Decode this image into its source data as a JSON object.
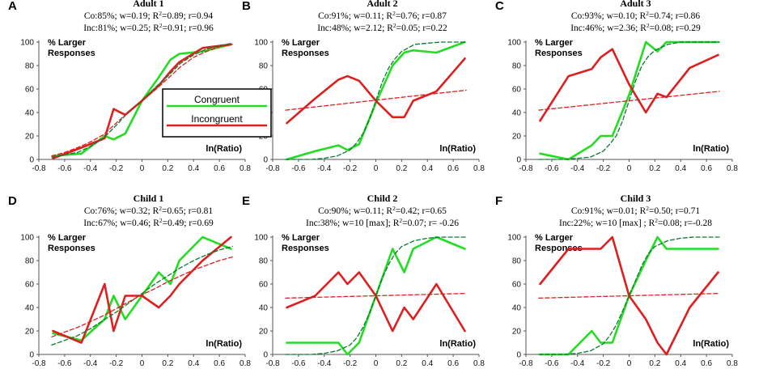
{
  "colors": {
    "congruent": "#22dd22",
    "congruent_fit": "#0a7a2e",
    "incongruent": "#dd1f1f",
    "incongruent_fit": "#dd1f1f",
    "axis": "#555555",
    "legend_border": "#000000"
  },
  "legend": {
    "congruent": "Congruent",
    "incongruent": "Incongruent"
  },
  "chart_data": [
    {
      "type": "line",
      "letter": "A",
      "title": "Adult 1",
      "stats_co": {
        "pre": "Co:85%; w=0.19; R",
        "sup": "2",
        "post": "=0.89; r=0.94"
      },
      "stats_inc": {
        "pre": "Inc:81%; w=0.25; R",
        "sup": "2",
        "post": "=0.91; r=0.96"
      },
      "ylabel": [
        "% Larger",
        "Responses"
      ],
      "xlabel": "ln(Ratio)",
      "xlim": [
        -0.8,
        0.8
      ],
      "ylim": [
        0,
        100
      ],
      "xticks": [
        "-0.8",
        "-0.6",
        "-0.4",
        "-0.2",
        "0",
        "0.2",
        "0.4",
        "0.6",
        "0.8"
      ],
      "yticks": [
        "0",
        "20",
        "40",
        "60",
        "80",
        "100"
      ],
      "show_legend": true,
      "series": [
        {
          "name": "Congruent",
          "style": "solid",
          "color_key": "congruent",
          "x": [
            -0.69,
            -0.47,
            -0.29,
            -0.22,
            -0.13,
            0,
            0.13,
            0.22,
            0.29,
            0.47,
            0.69
          ],
          "y": [
            3,
            5,
            20,
            17,
            22,
            50,
            70,
            85,
            90,
            92,
            98
          ]
        },
        {
          "name": "Incongruent",
          "style": "solid",
          "color_key": "incongruent",
          "x": [
            -0.69,
            -0.47,
            -0.29,
            -0.22,
            -0.13,
            0,
            0.13,
            0.22,
            0.29,
            0.47,
            0.69
          ],
          "y": [
            1,
            10,
            18,
            43,
            38,
            50,
            63,
            75,
            83,
            95,
            98
          ]
        },
        {
          "name": "Congruent fit",
          "style": "dashed",
          "color_key": "congruent_fit",
          "x": [
            -0.7,
            -0.6,
            -0.5,
            -0.4,
            -0.3,
            -0.2,
            -0.1,
            0,
            0.1,
            0.2,
            0.3,
            0.4,
            0.5,
            0.6,
            0.7
          ],
          "y": [
            2,
            4,
            6,
            11,
            18,
            29,
            41,
            50,
            61,
            71,
            82,
            89,
            94,
            97,
            99
          ]
        },
        {
          "name": "Incongruent fit",
          "style": "dashed",
          "color_key": "incongruent_fit",
          "x": [
            -0.7,
            -0.6,
            -0.5,
            -0.4,
            -0.3,
            -0.2,
            -0.1,
            0,
            0.1,
            0.2,
            0.3,
            0.4,
            0.5,
            0.6,
            0.7
          ],
          "y": [
            3,
            6,
            10,
            15,
            21,
            31,
            41,
            50,
            59,
            69,
            79,
            87,
            92,
            96,
            98
          ]
        }
      ]
    },
    {
      "type": "line",
      "letter": "B",
      "title": "Adult 2",
      "stats_co": {
        "pre": "Co:91%; w=0.11; R",
        "sup": "2",
        "post": "=0.76; r=0.87"
      },
      "stats_inc": {
        "pre": "Inc:48%; w=2.12; R",
        "sup": "2",
        "post": "=0.05; r=0.22"
      },
      "ylabel": [
        "% Larger",
        "Responses"
      ],
      "xlabel": "ln(Ratio)",
      "xlim": [
        -0.8,
        0.8
      ],
      "ylim": [
        0,
        100
      ],
      "xticks": [
        "-0.8",
        "-0.6",
        "-0.4",
        "-0.2",
        "0",
        "0.2",
        "0.4",
        "0.6",
        "0.8"
      ],
      "yticks": [
        "0",
        "20",
        "40",
        "60",
        "80",
        "100"
      ],
      "show_legend": false,
      "series": [
        {
          "name": "Congruent",
          "style": "solid",
          "color_key": "congruent",
          "x": [
            -0.69,
            -0.47,
            -0.29,
            -0.22,
            -0.13,
            0,
            0.13,
            0.22,
            0.29,
            0.47,
            0.69
          ],
          "y": [
            0,
            7,
            12,
            8,
            13,
            48,
            80,
            91,
            93,
            91,
            100
          ]
        },
        {
          "name": "Incongruent",
          "style": "solid",
          "color_key": "incongruent",
          "x": [
            -0.69,
            -0.47,
            -0.29,
            -0.22,
            -0.13,
            0,
            0.13,
            0.22,
            0.29,
            0.47,
            0.69
          ],
          "y": [
            31,
            52,
            68,
            71,
            67,
            50,
            36,
            36,
            50,
            58,
            86
          ]
        },
        {
          "name": "Congruent fit",
          "style": "dashed",
          "color_key": "congruent_fit",
          "x": [
            -0.7,
            -0.6,
            -0.5,
            -0.4,
            -0.3,
            -0.2,
            -0.15,
            -0.1,
            -0.05,
            0,
            0.05,
            0.1,
            0.15,
            0.2,
            0.3,
            0.4,
            0.5,
            0.6,
            0.7
          ],
          "y": [
            0,
            0,
            0,
            1,
            3,
            8,
            14,
            22,
            34,
            50,
            66,
            78,
            86,
            92,
            98,
            99,
            100,
            100,
            100
          ]
        },
        {
          "name": "Incongruent fit",
          "style": "dashed",
          "color_key": "incongruent_fit",
          "x": [
            -0.7,
            0.7
          ],
          "y": [
            42,
            59
          ]
        }
      ]
    },
    {
      "type": "line",
      "letter": "C",
      "title": "Adult 3",
      "stats_co": {
        "pre": "Co:93%; w=0.10; R",
        "sup": "2",
        "post": "=0.74; r=0.86"
      },
      "stats_inc": {
        "pre": "Inc:46%; w=2.36; R",
        "sup": "2",
        "post": "=0.08; r=0.29"
      },
      "ylabel": [
        "% Larger",
        "Responses"
      ],
      "xlabel": "ln(Ratio)",
      "xlim": [
        -0.8,
        0.8
      ],
      "ylim": [
        0,
        100
      ],
      "xticks": [
        "-0.8",
        "-0.6",
        "-0.4",
        "-0.2",
        "0",
        "0.2",
        "0.4",
        "0.6",
        "0.8"
      ],
      "yticks": [
        "0",
        "20",
        "40",
        "60",
        "80",
        "100"
      ],
      "show_legend": false,
      "series": [
        {
          "name": "Congruent",
          "style": "solid",
          "color_key": "congruent",
          "x": [
            -0.69,
            -0.47,
            -0.29,
            -0.22,
            -0.13,
            0,
            0.13,
            0.22,
            0.29,
            0.47,
            0.69
          ],
          "y": [
            5,
            0,
            12,
            20,
            20,
            55,
            100,
            92,
            100,
            100,
            100
          ]
        },
        {
          "name": "Incongruent",
          "style": "solid",
          "color_key": "incongruent",
          "x": [
            -0.69,
            -0.47,
            -0.29,
            -0.22,
            -0.13,
            0,
            0.13,
            0.22,
            0.29,
            0.47,
            0.69
          ],
          "y": [
            33,
            71,
            77,
            87,
            94,
            64,
            40,
            56,
            53,
            78,
            89
          ]
        },
        {
          "name": "Congruent fit",
          "style": "dashed",
          "color_key": "congruent_fit",
          "x": [
            -0.7,
            -0.6,
            -0.5,
            -0.4,
            -0.3,
            -0.2,
            -0.15,
            -0.1,
            -0.05,
            0,
            0.05,
            0.1,
            0.15,
            0.2,
            0.3,
            0.4,
            0.5,
            0.6,
            0.7
          ],
          "y": [
            0,
            0,
            0,
            1,
            2,
            7,
            13,
            20,
            33,
            50,
            67,
            80,
            88,
            93,
            98,
            100,
            100,
            100,
            100
          ]
        },
        {
          "name": "Incongruent fit",
          "style": "dashed",
          "color_key": "incongruent_fit",
          "x": [
            -0.7,
            0.7
          ],
          "y": [
            42,
            58
          ]
        }
      ]
    },
    {
      "type": "line",
      "letter": "D",
      "title": "Child 1",
      "stats_co": {
        "pre": "Co:76%; w=0.32; R",
        "sup": "2",
        "post": "=0.65; r=0.81"
      },
      "stats_inc": {
        "pre": "Inc:67%; w=0.46; R",
        "sup": "2",
        "post": "=0.49; r=0.69"
      },
      "ylabel": [
        "% Larger",
        "Responses"
      ],
      "xlabel": "ln(Ratio)",
      "xlim": [
        -0.8,
        0.8
      ],
      "ylim": [
        0,
        100
      ],
      "xticks": [
        "-0.8",
        "-0.6",
        "-0.4",
        "-0.2",
        "0",
        "0.2",
        "0.4",
        "0.6",
        "0.8"
      ],
      "yticks": [
        "0",
        "20",
        "40",
        "60",
        "80",
        "100"
      ],
      "show_legend": false,
      "series": [
        {
          "name": "Congruent",
          "style": "solid",
          "color_key": "congruent",
          "x": [
            -0.69,
            -0.47,
            -0.29,
            -0.22,
            -0.13,
            0,
            0.13,
            0.22,
            0.29,
            0.47,
            0.69
          ],
          "y": [
            18,
            12,
            30,
            50,
            30,
            50,
            70,
            60,
            80,
            100,
            90
          ]
        },
        {
          "name": "Incongruent",
          "style": "solid",
          "color_key": "incongruent",
          "x": [
            -0.69,
            -0.47,
            -0.29,
            -0.22,
            -0.13,
            0,
            0.13,
            0.22,
            0.29,
            0.47,
            0.69
          ],
          "y": [
            20,
            10,
            60,
            20,
            50,
            50,
            40,
            50,
            60,
            80,
            100
          ]
        },
        {
          "name": "Congruent fit",
          "style": "dashed",
          "color_key": "congruent_fit",
          "x": [
            -0.7,
            -0.6,
            -0.5,
            -0.4,
            -0.3,
            -0.2,
            -0.1,
            0,
            0.1,
            0.2,
            0.3,
            0.4,
            0.5,
            0.6,
            0.7
          ],
          "y": [
            8,
            12,
            16,
            22,
            29,
            36,
            44,
            52,
            60,
            67,
            74,
            80,
            85,
            89,
            92
          ]
        },
        {
          "name": "Incongruent fit",
          "style": "dashed",
          "color_key": "incongruent_fit",
          "x": [
            -0.7,
            -0.6,
            -0.5,
            -0.4,
            -0.3,
            -0.2,
            -0.1,
            0,
            0.1,
            0.2,
            0.3,
            0.4,
            0.5,
            0.6,
            0.7
          ],
          "y": [
            15,
            19,
            23,
            28,
            33,
            39,
            45,
            51,
            56,
            62,
            67,
            72,
            76,
            80,
            83
          ]
        }
      ]
    },
    {
      "type": "line",
      "letter": "E",
      "title": "Child 2",
      "stats_co": {
        "pre": "Co:90%; w=0.11; R",
        "sup": "2",
        "post": "=0.42; r=0.65"
      },
      "stats_inc": {
        "pre": "Inc:38%; w=10 [max]; R",
        "sup": "2",
        "post": "=0.07; r= -0.26"
      },
      "ylabel": [
        "% Larger",
        "Responses"
      ],
      "xlabel": "ln(Ratio)",
      "xlim": [
        -0.8,
        0.8
      ],
      "ylim": [
        0,
        100
      ],
      "xticks": [
        "-0.8",
        "-0.6",
        "-0.4",
        "-0.2",
        "0",
        "0.2",
        "0.4",
        "0.6",
        "0.8"
      ],
      "yticks": [
        "0",
        "20",
        "40",
        "60",
        "80",
        "100"
      ],
      "show_legend": false,
      "series": [
        {
          "name": "Congruent",
          "style": "solid",
          "color_key": "congruent",
          "x": [
            -0.69,
            -0.47,
            -0.29,
            -0.22,
            -0.13,
            0,
            0.13,
            0.22,
            0.29,
            0.47,
            0.69
          ],
          "y": [
            10,
            10,
            10,
            0,
            10,
            50,
            90,
            70,
            90,
            100,
            90
          ]
        },
        {
          "name": "Incongruent",
          "style": "solid",
          "color_key": "incongruent",
          "x": [
            -0.69,
            -0.47,
            -0.29,
            -0.22,
            -0.13,
            0,
            0.13,
            0.22,
            0.29,
            0.47,
            0.69
          ],
          "y": [
            40,
            50,
            70,
            60,
            70,
            50,
            20,
            40,
            30,
            60,
            20
          ]
        },
        {
          "name": "Congruent fit",
          "style": "dashed",
          "color_key": "congruent_fit",
          "x": [
            -0.7,
            -0.6,
            -0.5,
            -0.4,
            -0.3,
            -0.2,
            -0.15,
            -0.1,
            -0.05,
            0,
            0.05,
            0.1,
            0.15,
            0.2,
            0.3,
            0.4,
            0.5,
            0.6,
            0.7
          ],
          "y": [
            0,
            0,
            0,
            1,
            3,
            8,
            14,
            23,
            35,
            50,
            65,
            77,
            86,
            92,
            97,
            99,
            100,
            100,
            100
          ]
        },
        {
          "name": "Incongruent fit",
          "style": "dashed",
          "color_key": "incongruent_fit",
          "x": [
            -0.7,
            0.7
          ],
          "y": [
            48,
            52
          ]
        }
      ]
    },
    {
      "type": "line",
      "letter": "F",
      "title": "Child 3",
      "stats_co": {
        "pre": "Co:91%; w=0.01; R",
        "sup": "2",
        "post": "=0.50; r=0.71"
      },
      "stats_inc": {
        "pre": "Inc:22%; w=10 [max] ; R",
        "sup": "2",
        "post": "=0.08; r=-0.28"
      },
      "ylabel": [
        "% Larger",
        "Responses"
      ],
      "xlabel": "ln(Ratio)",
      "xlim": [
        -0.8,
        0.8
      ],
      "ylim": [
        0,
        100
      ],
      "xticks": [
        "-0.8",
        "-0.6",
        "-0.4",
        "-0.2",
        "0",
        "0.2",
        "0.4",
        "0.6",
        "0.8"
      ],
      "yticks": [
        "0",
        "20",
        "40",
        "60",
        "80",
        "100"
      ],
      "show_legend": false,
      "series": [
        {
          "name": "Congruent",
          "style": "solid",
          "color_key": "congruent",
          "x": [
            -0.69,
            -0.47,
            -0.29,
            -0.22,
            -0.13,
            0,
            0.13,
            0.22,
            0.29,
            0.47,
            0.69
          ],
          "y": [
            0,
            0,
            20,
            10,
            10,
            50,
            80,
            100,
            90,
            90,
            90
          ]
        },
        {
          "name": "Incongruent",
          "style": "solid",
          "color_key": "incongruent",
          "x": [
            -0.69,
            -0.47,
            -0.29,
            -0.22,
            -0.13,
            0,
            0.13,
            0.22,
            0.29,
            0.47,
            0.69
          ],
          "y": [
            60,
            90,
            90,
            90,
            100,
            50,
            30,
            10,
            0,
            40,
            70
          ]
        },
        {
          "name": "Congruent fit",
          "style": "dashed",
          "color_key": "congruent_fit",
          "x": [
            -0.7,
            -0.6,
            -0.5,
            -0.4,
            -0.3,
            -0.2,
            -0.15,
            -0.1,
            -0.05,
            0,
            0.05,
            0.1,
            0.15,
            0.2,
            0.3,
            0.4,
            0.5,
            0.6,
            0.7
          ],
          "y": [
            0,
            0,
            0,
            1,
            3,
            9,
            16,
            25,
            37,
            50,
            63,
            76,
            86,
            92,
            97,
            99,
            100,
            100,
            100
          ]
        },
        {
          "name": "Incongruent fit",
          "style": "dashed",
          "color_key": "incongruent_fit",
          "x": [
            -0.7,
            0.7
          ],
          "y": [
            48,
            52
          ]
        }
      ]
    }
  ]
}
